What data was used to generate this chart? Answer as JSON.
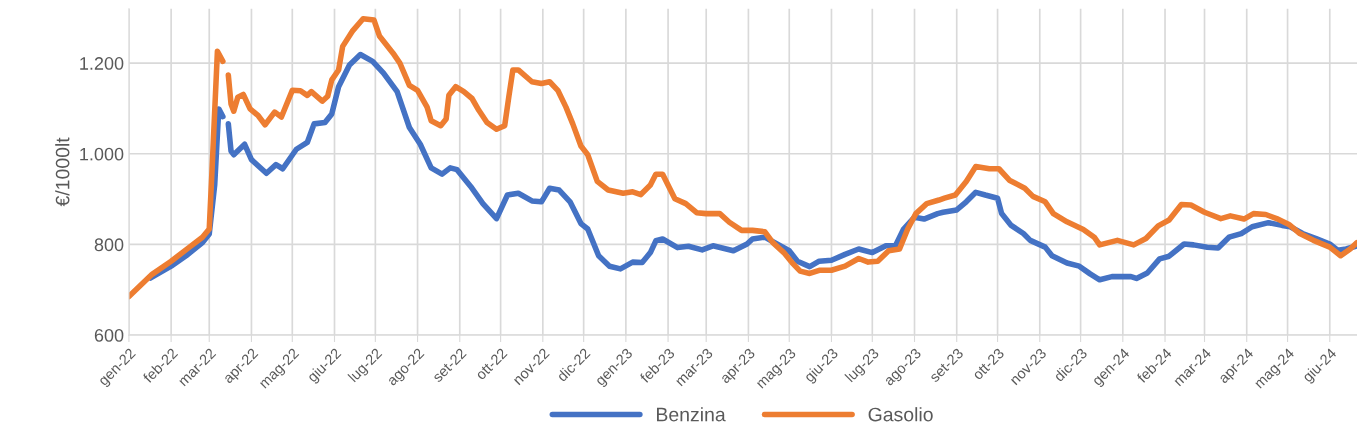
{
  "chart_data": {
    "type": "line",
    "ylabel": "€/1000lt",
    "ylim": [
      600,
      1320
    ],
    "yticks": [
      600,
      800,
      {
        "value": 1000,
        "label": "1.000"
      },
      {
        "value": 1200,
        "label": "1.200"
      }
    ],
    "xlim": [
      "2022-01-01",
      "2024-06-21"
    ],
    "xticks": [
      {
        "value": "2022-01-01",
        "label": "gen-22"
      },
      {
        "value": "2022-02-01",
        "label": "feb-22"
      },
      {
        "value": "2022-03-01",
        "label": "mar-22"
      },
      {
        "value": "2022-04-01",
        "label": "apr-22"
      },
      {
        "value": "2022-05-01",
        "label": "mag-22"
      },
      {
        "value": "2022-06-01",
        "label": "giu-22"
      },
      {
        "value": "2022-07-01",
        "label": "lug-22"
      },
      {
        "value": "2022-08-01",
        "label": "ago-22"
      },
      {
        "value": "2022-09-01",
        "label": "set-22"
      },
      {
        "value": "2022-10-01",
        "label": "ott-22"
      },
      {
        "value": "2022-11-01",
        "label": "nov-22"
      },
      {
        "value": "2022-12-01",
        "label": "dic-22"
      },
      {
        "value": "2023-01-01",
        "label": "gen-23"
      },
      {
        "value": "2023-02-01",
        "label": "feb-23"
      },
      {
        "value": "2023-03-01",
        "label": "mar-23"
      },
      {
        "value": "2023-04-01",
        "label": "apr-23"
      },
      {
        "value": "2023-05-01",
        "label": "mag-23"
      },
      {
        "value": "2023-06-01",
        "label": "giu-23"
      },
      {
        "value": "2023-07-01",
        "label": "lug-23"
      },
      {
        "value": "2023-08-01",
        "label": "ago-23"
      },
      {
        "value": "2023-09-01",
        "label": "set-23"
      },
      {
        "value": "2023-10-01",
        "label": "ott-23"
      },
      {
        "value": "2023-11-01",
        "label": "nov-23"
      },
      {
        "value": "2023-12-01",
        "label": "dic-23"
      },
      {
        "value": "2024-01-01",
        "label": "gen-24"
      },
      {
        "value": "2024-02-01",
        "label": "feb-24"
      },
      {
        "value": "2024-03-01",
        "label": "mar-24"
      },
      {
        "value": "2024-04-01",
        "label": "apr-24"
      },
      {
        "value": "2024-05-01",
        "label": "mag-24"
      },
      {
        "value": "2024-06-01",
        "label": "giu-24"
      }
    ],
    "grid": true,
    "legend": "bottom",
    "marker": "none",
    "line_style": "solid",
    "series": [
      {
        "name": "Benzina",
        "color": "#4472c4",
        "x": [
          "2022-01-17",
          "2022-02-01",
          "2022-02-12",
          "2022-02-24",
          "2022-03-01",
          "2022-03-05",
          "2022-03-08",
          "2022-03-11",
          "2022-03-13",
          "2022-03-15",
          "2022-03-17",
          "2022-03-19",
          "2022-03-27",
          "2022-04-01",
          "2022-04-12",
          "2022-04-19",
          "2022-04-24",
          "2022-05-04",
          "2022-05-12",
          "2022-05-17",
          "2022-05-25",
          "2022-05-30",
          "2022-06-04",
          "2022-06-12",
          "2022-06-20",
          "2022-06-29",
          "2022-07-07",
          "2022-07-17",
          "2022-07-26",
          "2022-08-03",
          "2022-08-11",
          "2022-08-19",
          "2022-08-25",
          "2022-08-30",
          "2022-09-09",
          "2022-09-18",
          "2022-09-28",
          "2022-10-06",
          "2022-10-14",
          "2022-10-24",
          "2022-10-31",
          "2022-11-06",
          "2022-11-13",
          "2022-11-21",
          "2022-11-29",
          "2022-12-04",
          "2022-12-12",
          "2022-12-20",
          "2022-12-28",
          "2023-01-06",
          "2023-01-13",
          "2023-01-19",
          "2023-01-23",
          "2023-01-28",
          "2023-02-08",
          "2023-02-16",
          "2023-02-26",
          "2023-03-06",
          "2023-03-21",
          "2023-03-31",
          "2023-04-04",
          "2023-04-13",
          "2023-04-22",
          "2023-05-01",
          "2023-05-07",
          "2023-05-16",
          "2023-05-23",
          "2023-06-01",
          "2023-06-11",
          "2023-06-21",
          "2023-07-01",
          "2023-07-11",
          "2023-07-18",
          "2023-07-24",
          "2023-08-01",
          "2023-08-08",
          "2023-08-18",
          "2023-08-22",
          "2023-09-01",
          "2023-09-08",
          "2023-09-15",
          "2023-09-22",
          "2023-10-01",
          "2023-10-04",
          "2023-10-11",
          "2023-10-20",
          "2023-10-25",
          "2023-11-05",
          "2023-11-10",
          "2023-11-21",
          "2023-11-30",
          "2023-12-08",
          "2023-12-15",
          "2023-12-24",
          "2024-01-07",
          "2024-01-11",
          "2024-01-19",
          "2024-01-28",
          "2024-02-04",
          "2024-02-15",
          "2024-02-22",
          "2024-03-03",
          "2024-03-11",
          "2024-03-19",
          "2024-03-28",
          "2024-04-05",
          "2024-04-17",
          "2024-04-27",
          "2024-05-03",
          "2024-05-12",
          "2024-05-22",
          "2024-06-01",
          "2024-06-07",
          "2024-06-13",
          "2024-06-20"
        ],
        "values": [
          726,
          752,
          775,
          804,
          823,
          931,
          1099,
          1082,
          null,
          1066,
          1006,
          998,
          1021,
          987,
          957,
          976,
          967,
          1010,
          1025,
          1066,
          1069,
          1088,
          1148,
          1196,
          1219,
          1204,
          1178,
          1137,
          1058,
          1021,
          969,
          955,
          969,
          965,
          928,
          890,
          857,
          909,
          913,
          896,
          894,
          924,
          920,
          894,
          846,
          834,
          775,
          752,
          746,
          761,
          760,
          782,
          808,
          812,
          793,
          796,
          788,
          797,
          786,
          801,
          812,
          816,
          801,
          786,
          763,
          751,
          763,
          765,
          778,
          790,
          782,
          797,
          797,
          834,
          860,
          856,
          868,
          871,
          876,
          894,
          915,
          909,
          902,
          868,
          842,
          824,
          809,
          794,
          775,
          759,
          752,
          735,
          722,
          729,
          729,
          725,
          737,
          768,
          774,
          801,
          799,
          794,
          792,
          816,
          824,
          839,
          848,
          842,
          839,
          824,
          813,
          801,
          787,
          790,
          796
        ]
      },
      {
        "name": "Gasolio",
        "color": "#ed7d31",
        "x": [
          "2022-01-01",
          "2022-01-18",
          "2022-02-01",
          "2022-02-14",
          "2022-02-24",
          "2022-03-01",
          "2022-03-03",
          "2022-03-07",
          "2022-03-09",
          "2022-03-11",
          "2022-03-13",
          "2022-03-15",
          "2022-03-17",
          "2022-03-19",
          "2022-03-22",
          "2022-03-26",
          "2022-03-31",
          "2022-04-06",
          "2022-04-11",
          "2022-04-18",
          "2022-04-23",
          "2022-05-01",
          "2022-05-07",
          "2022-05-12",
          "2022-05-15",
          "2022-05-23",
          "2022-05-27",
          "2022-05-30",
          "2022-06-04",
          "2022-06-07",
          "2022-06-14",
          "2022-06-22",
          "2022-06-30",
          "2022-07-04",
          "2022-07-14",
          "2022-07-19",
          "2022-07-26",
          "2022-08-01",
          "2022-08-08",
          "2022-08-11",
          "2022-08-18",
          "2022-08-22",
          "2022-08-24",
          "2022-08-29",
          "2022-09-04",
          "2022-09-10",
          "2022-09-15",
          "2022-09-21",
          "2022-09-28",
          "2022-10-04",
          "2022-10-07",
          "2022-10-10",
          "2022-10-14",
          "2022-10-24",
          "2022-10-31",
          "2022-11-06",
          "2022-11-12",
          "2022-11-18",
          "2022-11-23",
          "2022-11-29",
          "2022-12-04",
          "2022-12-11",
          "2022-12-19",
          "2022-12-30",
          "2023-01-06",
          "2023-01-12",
          "2023-01-19",
          "2023-01-23",
          "2023-01-28",
          "2023-02-06",
          "2023-02-14",
          "2023-02-22",
          "2023-03-01",
          "2023-03-11",
          "2023-03-18",
          "2023-03-27",
          "2023-04-04",
          "2023-04-13",
          "2023-04-19",
          "2023-04-27",
          "2023-05-03",
          "2023-05-09",
          "2023-05-16",
          "2023-05-23",
          "2023-06-01",
          "2023-06-11",
          "2023-06-21",
          "2023-06-28",
          "2023-07-05",
          "2023-07-13",
          "2023-07-21",
          "2023-07-27",
          "2023-08-02",
          "2023-08-10",
          "2023-08-19",
          "2023-08-23",
          "2023-08-31",
          "2023-09-08",
          "2023-09-15",
          "2023-09-25",
          "2023-10-02",
          "2023-10-10",
          "2023-10-21",
          "2023-10-27",
          "2023-11-05",
          "2023-11-11",
          "2023-11-21",
          "2023-12-03",
          "2023-12-11",
          "2023-12-15",
          "2023-12-28",
          "2024-01-09",
          "2024-01-18",
          "2024-01-27",
          "2024-02-04",
          "2024-02-13",
          "2024-02-20",
          "2024-03-01",
          "2024-03-13",
          "2024-03-20",
          "2024-03-30",
          "2024-04-06",
          "2024-04-15",
          "2024-04-23",
          "2024-05-02",
          "2024-05-10",
          "2024-05-20",
          "2024-06-01",
          "2024-06-09",
          "2024-06-16",
          "2024-06-21"
        ],
        "values": [
          685,
          734,
          763,
          793,
          816,
          834,
          961,
          1226,
          1215,
          1204,
          null,
          1174,
          1110,
          1094,
          1125,
          1131,
          1099,
          1084,
          1064,
          1092,
          1081,
          1140,
          1139,
          1129,
          1137,
          1116,
          1127,
          1163,
          1185,
          1237,
          1270,
          1298,
          1295,
          1260,
          1222,
          1200,
          1151,
          1140,
          1103,
          1073,
          1062,
          1077,
          1129,
          1148,
          1137,
          1122,
          1096,
          1069,
          1054,
          1062,
          1125,
          1185,
          1185,
          1159,
          1155,
          1159,
          1140,
          1103,
          1066,
          1017,
          998,
          939,
          920,
          913,
          916,
          910,
          931,
          955,
          955,
          901,
          890,
          870,
          868,
          868,
          849,
          831,
          831,
          828,
          804,
          782,
          760,
          741,
          736,
          743,
          743,
          752,
          769,
          761,
          763,
          786,
          790,
          834,
          868,
          890,
          898,
          902,
          909,
          939,
          972,
          967,
          967,
          941,
          924,
          906,
          894,
          868,
          850,
          833,
          816,
          799,
          809,
          799,
          813,
          841,
          854,
          888,
          887,
          871,
          857,
          863,
          856,
          868,
          866,
          857,
          844,
          824,
          809,
          794,
          775,
          790,
          804
        ]
      }
    ]
  }
}
